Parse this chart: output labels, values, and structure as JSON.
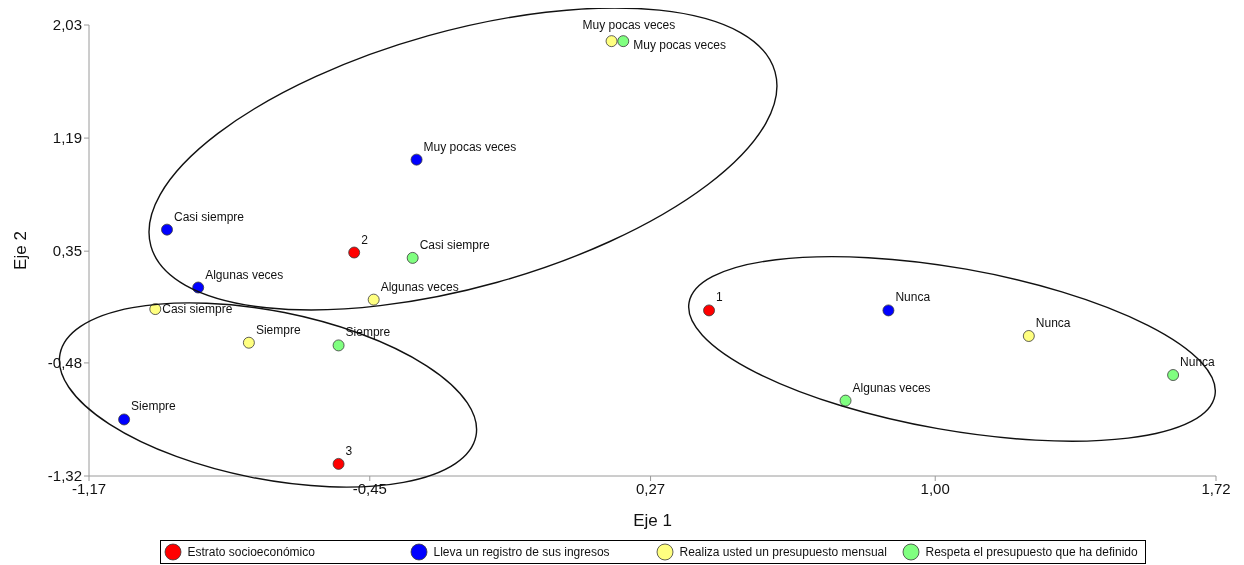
{
  "chart_data": {
    "type": "scatter",
    "xlabel": "Eje 1",
    "ylabel": "Eje 2",
    "xlim": [
      -1.17,
      1.72
    ],
    "xticks": [
      {
        "value": -1.17,
        "label": "-1,17"
      },
      {
        "value": -0.45,
        "label": "-0,45"
      },
      {
        "value": 0.27,
        "label": "0,27"
      },
      {
        "value": 1.0,
        "label": "1,00"
      },
      {
        "value": 1.72,
        "label": "1,72"
      }
    ],
    "ylim": [
      -1.32,
      2.03
    ],
    "yticks": [
      {
        "value": -1.32,
        "label": "-1,32"
      },
      {
        "value": -0.48,
        "label": "-0,48"
      },
      {
        "value": 0.35,
        "label": "0,35"
      },
      {
        "value": 1.19,
        "label": "1,19"
      },
      {
        "value": 2.03,
        "label": "2,03"
      }
    ],
    "legend": "bottom",
    "marker": "circle",
    "series": [
      {
        "name": "Estrato socioeconómico",
        "color": "#ff0000",
        "x": [
          0.42,
          -0.49,
          -0.53
        ],
        "values": [
          -0.09,
          0.34,
          -1.23
        ]
      },
      {
        "name": "Lleva un registro de sus ingresos",
        "color": "#0000ff",
        "x": [
          -0.33,
          -0.97,
          -0.89,
          -1.08,
          0.88
        ],
        "values": [
          1.03,
          0.51,
          0.08,
          -0.9,
          -0.09
        ]
      },
      {
        "name": "Realiza usted un presupuesto mensual",
        "color": "#ffff80",
        "x": [
          0.17,
          -1.0,
          -0.44,
          -0.76,
          1.24
        ],
        "values": [
          1.91,
          -0.08,
          -0.01,
          -0.33,
          -0.28
        ]
      },
      {
        "name": "Respeta el presupuesto que ha definido",
        "color": "#80ff80",
        "x": [
          0.2,
          -0.34,
          0.77,
          -0.53,
          1.61
        ],
        "values": [
          1.91,
          0.3,
          -0.76,
          -0.35,
          -0.57
        ]
      }
    ],
    "annotations": [
      {
        "text": "1",
        "x": 0.42,
        "y": -0.09
      },
      {
        "text": "2",
        "x": -0.49,
        "y": 0.34
      },
      {
        "text": "3",
        "x": -0.53,
        "y": -1.23
      },
      {
        "text": "Muy pocas veces",
        "x": -0.33,
        "y": 1.03
      },
      {
        "text": "Casi siempre",
        "x": -0.97,
        "y": 0.51
      },
      {
        "text": "Algunas veces",
        "x": -0.89,
        "y": 0.08
      },
      {
        "text": "Siempre",
        "x": -1.08,
        "y": -0.9
      },
      {
        "text": "Nunca",
        "x": 0.88,
        "y": -0.09
      },
      {
        "text": "Muy pocas veces",
        "x": 0.17,
        "y": 1.91
      },
      {
        "text": "Casi siempre",
        "x": -1.0,
        "y": -0.08
      },
      {
        "text": "Algunas veces",
        "x": -0.44,
        "y": -0.01
      },
      {
        "text": "Siempre",
        "x": -0.76,
        "y": -0.33
      },
      {
        "text": "Nunca",
        "x": 1.24,
        "y": -0.28
      },
      {
        "text": "Muy pocas veces",
        "x": 0.2,
        "y": 1.91
      },
      {
        "text": "Casi siempre",
        "x": -0.34,
        "y": 0.3
      },
      {
        "text": "Algunas veces",
        "x": 0.77,
        "y": -0.76
      },
      {
        "text": "Siempre",
        "x": -0.53,
        "y": -0.35
      },
      {
        "text": "Nunca",
        "x": 1.61,
        "y": -0.57
      }
    ]
  }
}
